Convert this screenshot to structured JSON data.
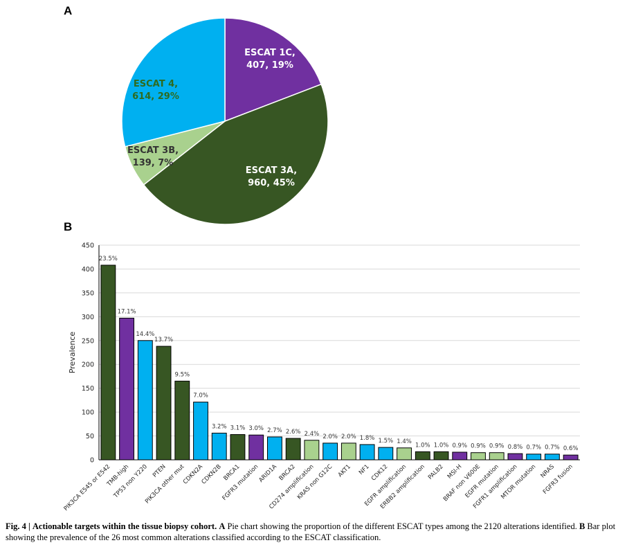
{
  "panel_labels": {
    "a": "A",
    "b": "B"
  },
  "caption": {
    "fig_label": "Fig. 4 |",
    "fig_title": "Actionable targets within the tissue biopsy cohort.",
    "a_marker": "A",
    "a_text": "Pie chart showing the proportion of the different ESCAT types among the 2120 alterations identified.",
    "b_marker": "B",
    "b_text": "Bar plot showing the prevalence of the 26 most common alterations classified according to the ESCAT classification."
  },
  "colors": {
    "escat_1c": "#7030a0",
    "escat_3a": "#375623",
    "escat_3b": "#a9d18e",
    "escat_4": "#00b0f0",
    "edge": "#000000"
  },
  "chart_data": [
    {
      "type": "pie",
      "title": "",
      "slices": [
        {
          "name": "ESCAT 1C",
          "count": 407,
          "pct": "19%",
          "value": 19.2,
          "color": "#7030a0",
          "label_line1": "ESCAT 1C,",
          "label_line2": "407, 19%",
          "label_color": "#ffffff"
        },
        {
          "name": "ESCAT 3A",
          "count": 960,
          "pct": "45%",
          "value": 45.3,
          "color": "#375623",
          "label_line1": "ESCAT 3A,",
          "label_line2": "960, 45%",
          "label_color": "#ffffff"
        },
        {
          "name": "ESCAT 3B",
          "count": 139,
          "pct": "7%",
          "value": 6.6,
          "color": "#a9d18e",
          "label_line1": "ESCAT 3B,",
          "label_line2": "139, 7%",
          "label_color": "#333333"
        },
        {
          "name": "ESCAT 4",
          "count": 614,
          "pct": "29%",
          "value": 29.0,
          "color": "#00b0f0",
          "label_line1": "ESCAT 4,",
          "label_line2": "614, 29%",
          "label_color": "#2e6b1f"
        }
      ]
    },
    {
      "type": "bar",
      "title": "",
      "xlabel": "",
      "ylabel": "Prevalence",
      "ylim": [
        0,
        450
      ],
      "yticks": [
        0,
        50,
        100,
        150,
        200,
        250,
        300,
        350,
        400,
        450
      ],
      "grid": true,
      "categories": [
        "PIK3CA E545 or E542",
        "TMB-high",
        "TP53 non Y220",
        "PTEN",
        "PIK3CA other mut",
        "CDKN2A",
        "CDKN2B",
        "BRCA1",
        "FGFR3 mutation",
        "ARID1A",
        "BRCA2",
        "CD274 amplification",
        "KRAS non G12C",
        "AKT1",
        "NF1",
        "CDK12",
        "EGFR amplification",
        "ERBB2 amplification",
        "PALB2",
        "MSI-H",
        "BRAF non V600E",
        "EGFR mutation",
        "FGFR1 amplification",
        "MTOR mutation",
        "NRAS",
        "FGFR3 fusion"
      ],
      "values": [
        408,
        297,
        250,
        238,
        165,
        121,
        56,
        53,
        52,
        48,
        45,
        41,
        35,
        35,
        32,
        26,
        25,
        17,
        17,
        16,
        15,
        15,
        13,
        12,
        12,
        10
      ],
      "labels": [
        "23.5%",
        "17.1%",
        "14.4%",
        "13.7%",
        "9.5%",
        "7.0%",
        "3.2%",
        "3.1%",
        "3.0%",
        "2.7%",
        "2.6%",
        "2.4%",
        "2.0%",
        "2.0%",
        "1.8%",
        "1.5%",
        "1.4%",
        "1.0%",
        "1.0%",
        "0.9%",
        "0.9%",
        "0.9%",
        "0.8%",
        "0.7%",
        "0.7%",
        "0.6%"
      ],
      "escat": [
        "3A",
        "1C",
        "4",
        "3A",
        "3A",
        "4",
        "4",
        "3A",
        "1C",
        "4",
        "3A",
        "3B",
        "4",
        "3B",
        "4",
        "4",
        "3B",
        "3A",
        "3A",
        "1C",
        "3B",
        "3B",
        "1C",
        "4",
        "4",
        "1C"
      ]
    }
  ]
}
